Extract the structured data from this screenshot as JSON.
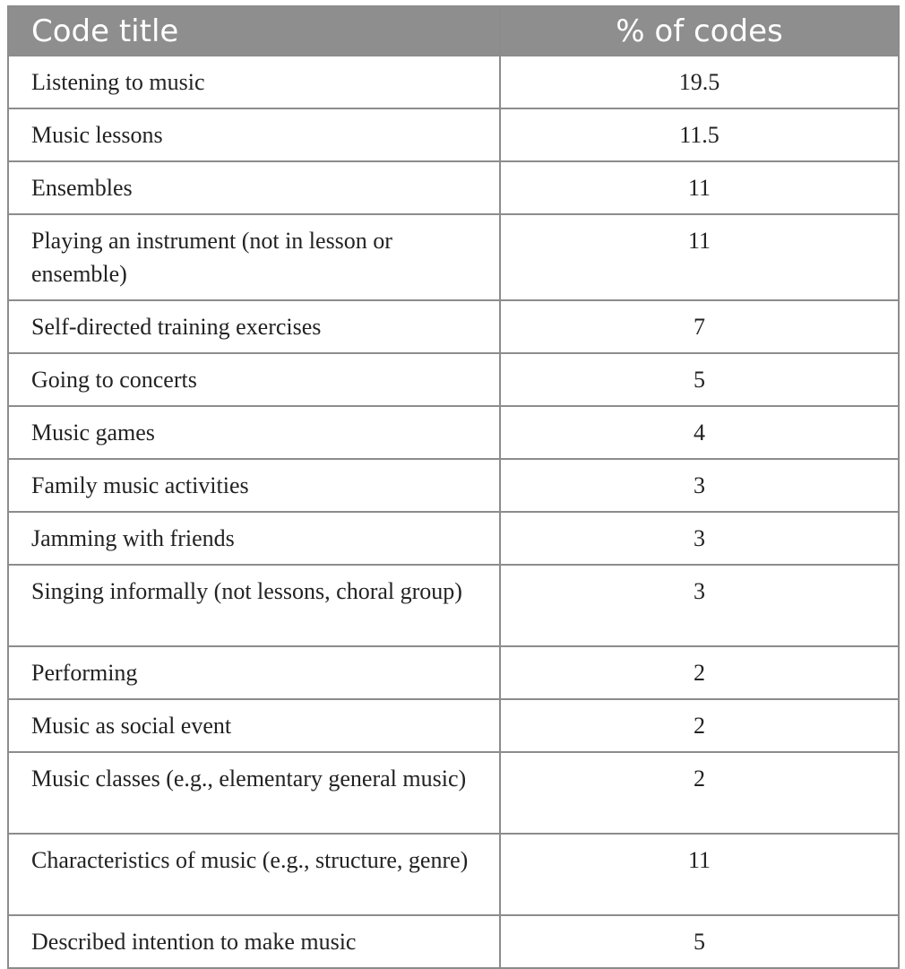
{
  "table": {
    "headers": [
      "Code title",
      "% of codes"
    ],
    "rows": [
      {
        "title": "Listening to music",
        "percent": "19.5"
      },
      {
        "title": "Music lessons",
        "percent": "11.5"
      },
      {
        "title": "Ensembles",
        "percent": "11"
      },
      {
        "title": "Playing an instrument (not in lesson or ensemble)",
        "percent": "11"
      },
      {
        "title": "Self-directed training exercises",
        "percent": "7"
      },
      {
        "title": "Going to concerts",
        "percent": "5"
      },
      {
        "title": "Music games",
        "percent": "4"
      },
      {
        "title": "Family music activities",
        "percent": "3"
      },
      {
        "title": "Jamming with friends",
        "percent": "3"
      },
      {
        "title": "Singing informally (not lessons, choral group)",
        "percent": "3"
      },
      {
        "title": "Performing",
        "percent": "2"
      },
      {
        "title": "Music as social event",
        "percent": "2"
      },
      {
        "title": "Music classes (e.g., elementary general music)",
        "percent": "2"
      },
      {
        "title": "Characteristics of music (e.g., structure, genre)",
        "percent": "11"
      },
      {
        "title": "Described intention to make music",
        "percent": "5"
      }
    ]
  },
  "colors": {
    "header_bg": "#8e8e8e",
    "header_text": "#ffffff",
    "border": "#8c8c8c",
    "body_text": "#222222"
  }
}
